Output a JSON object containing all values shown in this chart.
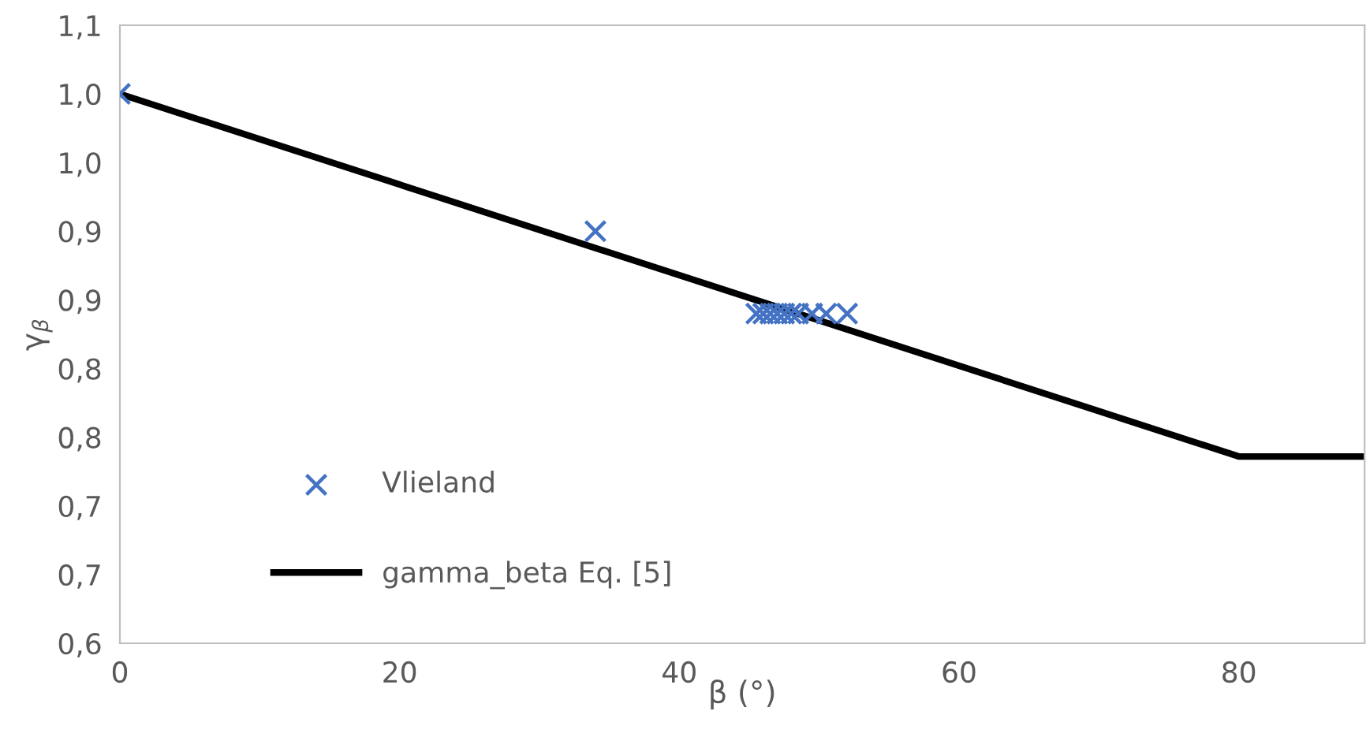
{
  "chart_data": {
    "type": "scatter",
    "xlabel": "β (°)",
    "ylabel": "γ$_{β}$",
    "xlim": [
      0,
      89
    ],
    "xticks": [
      0,
      20,
      40,
      60,
      80
    ],
    "ylim": [
      0.6,
      1.05
    ],
    "yticks": [
      {
        "value": 0.6,
        "label": "0,6"
      },
      {
        "value": 0.65,
        "label": "0,7"
      },
      {
        "value": 0.7,
        "label": "0,7"
      },
      {
        "value": 0.75,
        "label": "0,8"
      },
      {
        "value": 0.8,
        "label": "0,8"
      },
      {
        "value": 0.85,
        "label": "0,9"
      },
      {
        "value": 0.9,
        "label": "0,9"
      },
      {
        "value": 0.95,
        "label": "1,0"
      },
      {
        "value": 1.0,
        "label": "1,0"
      },
      {
        "value": 1.05,
        "label": "1,1"
      }
    ],
    "grid": false,
    "legend": "bottom left",
    "series": [
      {
        "name": "Vlieland",
        "marker": "cross",
        "color": "#4472c4",
        "x": [
          0,
          34,
          45.5,
          46,
          46.5,
          47,
          47.5,
          48,
          48.5,
          49.5,
          50.5,
          52
        ],
        "values": [
          1.0,
          0.9,
          0.84,
          0.84,
          0.84,
          0.84,
          0.84,
          0.84,
          0.84,
          0.84,
          0.84,
          0.84
        ]
      },
      {
        "name": "gamma_beta Eq. [5]",
        "type": "line",
        "marker": "none",
        "line_style": "solid",
        "color": "#000000",
        "x": [
          0,
          80,
          89
        ],
        "values": [
          1.0,
          0.736,
          0.736
        ]
      }
    ]
  }
}
